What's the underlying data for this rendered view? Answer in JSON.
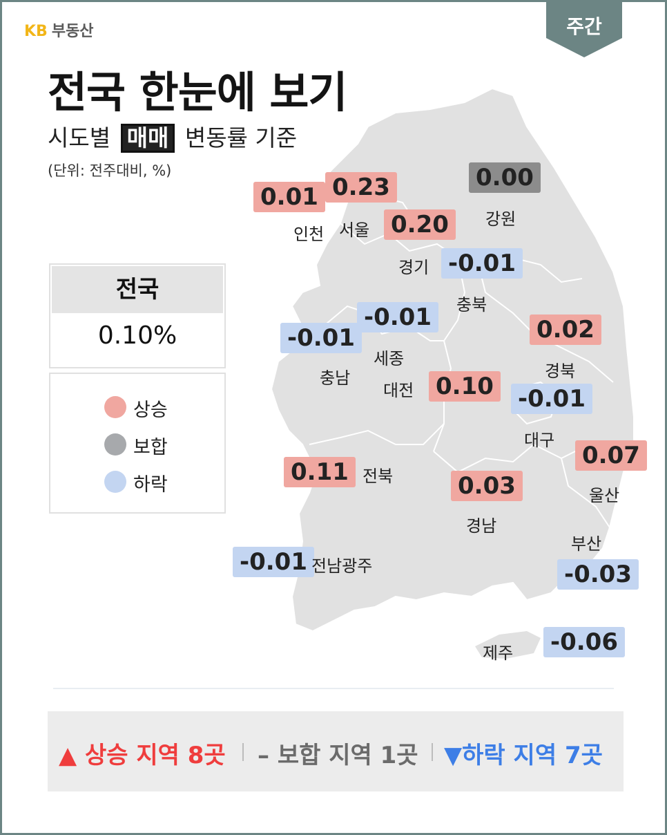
{
  "brand": {
    "kb": "KB",
    "name": "부동산"
  },
  "period_tag": "주간",
  "title": "전국 한눈에 보기",
  "subtitle": {
    "prefix": "시도별",
    "highlight": "매매",
    "suffix": "변동률 기준"
  },
  "unit_note": "(단위: 전주대비, %)",
  "national": {
    "label": "전국",
    "value": "0.10%"
  },
  "legend": [
    {
      "label": "상승",
      "color": "#f0a7a0"
    },
    {
      "label": "보합",
      "color": "#a7a9ac"
    },
    {
      "label": "하락",
      "color": "#c3d5f1"
    }
  ],
  "colors": {
    "up": "#f0a7a0",
    "flat": "#8c8c8c",
    "down": "#c3d5f1",
    "up_text": "#ef3d3d",
    "flat_text": "#6b6b6b",
    "down_text": "#3d7ee6",
    "frame": "#6c8584",
    "map": "#e1e1e1"
  },
  "regions": {
    "incheon": {
      "name": "인천",
      "value": "0.01"
    },
    "seoul": {
      "name": "서울",
      "value": "0.23"
    },
    "gangwon": {
      "name": "강원",
      "value": "0.00"
    },
    "gyeonggi": {
      "name": "경기",
      "value": "0.20"
    },
    "chungbuk": {
      "name": "충북",
      "value": "-0.01"
    },
    "sejong": {
      "name": "세종",
      "value": "-0.01"
    },
    "chungnam": {
      "name": "충남",
      "value": "-0.01"
    },
    "gyeongbuk": {
      "name": "경북",
      "value": "0.02"
    },
    "daejeon": {
      "name": "대전",
      "value": "0.10"
    },
    "daegu": {
      "name": "대구",
      "value": "-0.01"
    },
    "ulsan": {
      "name": "울산",
      "value": "0.07"
    },
    "jeonbuk": {
      "name": "전북",
      "value": "0.11"
    },
    "gyeongnam": {
      "name": "경남",
      "value": "0.03"
    },
    "busan": {
      "name": "부산",
      "value": "-0.03"
    },
    "jeonnam_gwangju": {
      "name": "전남광주",
      "value": "-0.01"
    },
    "jeju": {
      "name": "제주",
      "value": "-0.06"
    }
  },
  "summary": {
    "up": "▲ 상승 지역 8곳",
    "flat": "– 보합 지역 1곳",
    "down": "▼하락 지역 7곳"
  }
}
